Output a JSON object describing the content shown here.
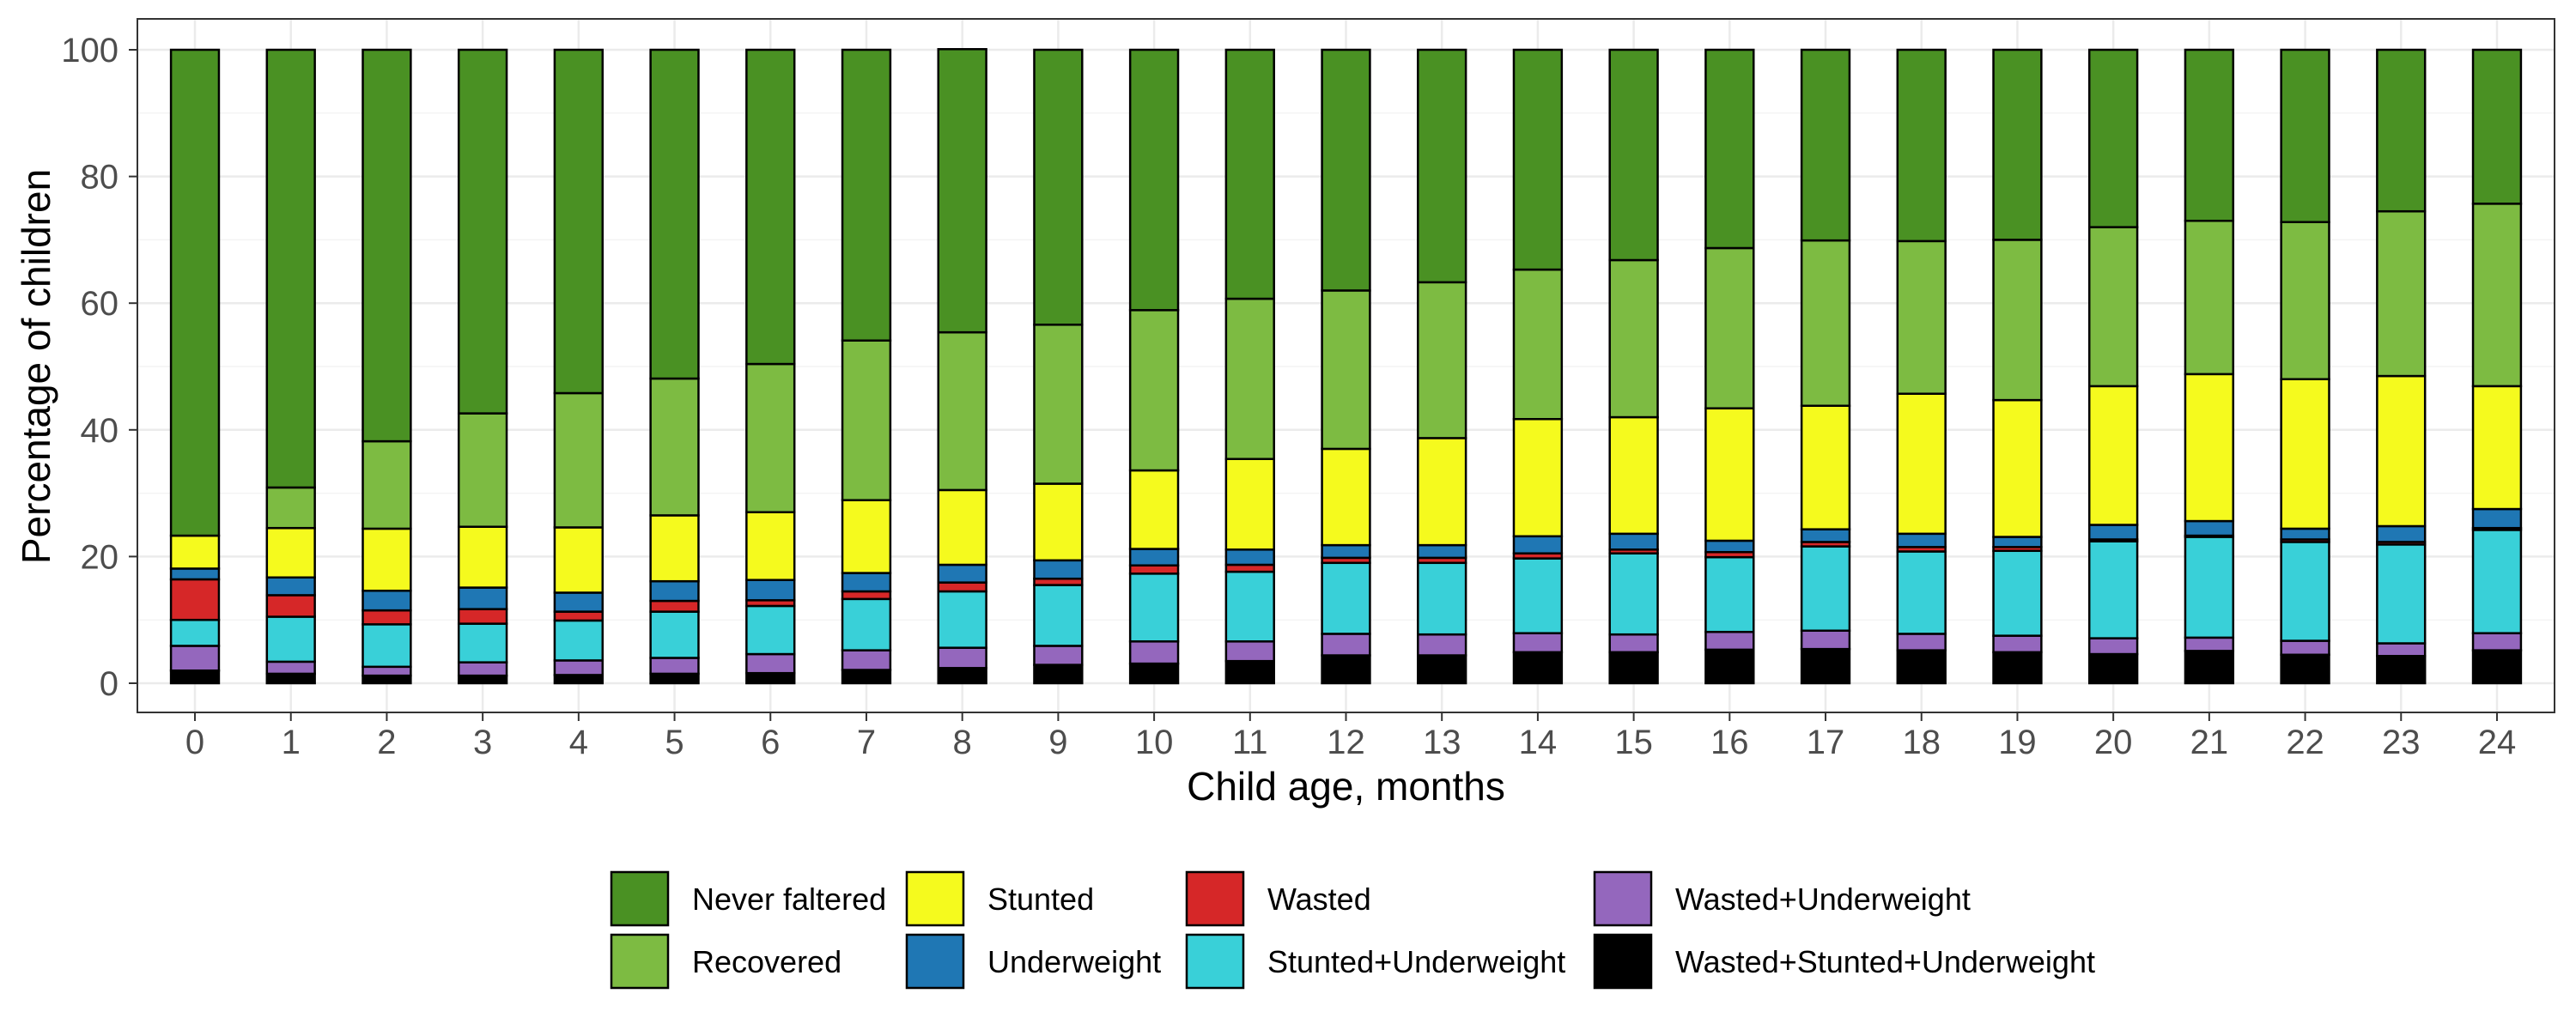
{
  "chart_data": {
    "type": "bar",
    "stacked": true,
    "xlabel": "Child age, months",
    "ylabel": "Percentage of children",
    "ylim": [
      0,
      100
    ],
    "yticks": [
      0,
      20,
      40,
      60,
      80,
      100
    ],
    "grid": true,
    "legend_position": "bottom",
    "categories": [
      "0",
      "1",
      "2",
      "3",
      "4",
      "5",
      "6",
      "7",
      "8",
      "9",
      "10",
      "11",
      "12",
      "13",
      "14",
      "15",
      "16",
      "17",
      "18",
      "19",
      "20",
      "21",
      "22",
      "23",
      "24"
    ],
    "series": [
      {
        "name": "Wasted+Stunted+Underweight",
        "color": "#000000",
        "values": [
          2.0,
          1.5,
          1.2,
          1.2,
          1.3,
          1.5,
          1.6,
          2.1,
          2.4,
          2.9,
          3.1,
          3.5,
          4.4,
          4.4,
          4.9,
          4.9,
          5.3,
          5.4,
          5.2,
          4.9,
          4.6,
          5.1,
          4.5,
          4.3,
          5.2
        ]
      },
      {
        "name": "Wasted+Underweight",
        "color": "#9467bd",
        "values": [
          3.9,
          1.9,
          1.4,
          2.1,
          2.3,
          2.5,
          3.0,
          3.1,
          3.2,
          3.0,
          3.5,
          3.1,
          3.4,
          3.3,
          3.0,
          2.8,
          2.8,
          2.9,
          2.6,
          2.6,
          2.5,
          2.1,
          2.2,
          2.0,
          2.7
        ]
      },
      {
        "name": "Stunted+Underweight",
        "color": "#39d0d8",
        "values": [
          4.1,
          7.1,
          6.7,
          6.1,
          6.3,
          7.3,
          7.6,
          8.1,
          8.9,
          9.6,
          10.7,
          11.0,
          11.2,
          11.3,
          11.8,
          12.8,
          11.8,
          13.3,
          13.0,
          13.4,
          15.3,
          15.9,
          15.6,
          15.6,
          16.3
        ]
      },
      {
        "name": "Wasted",
        "color": "#d62728",
        "values": [
          6.4,
          3.4,
          2.2,
          2.3,
          1.4,
          1.7,
          0.9,
          1.2,
          1.4,
          1.0,
          1.3,
          1.1,
          0.8,
          0.8,
          0.8,
          0.6,
          0.8,
          0.7,
          0.7,
          0.6,
          0.3,
          0.2,
          0.4,
          0.4,
          0.3
        ]
      },
      {
        "name": "Underweight",
        "color": "#1f77b4",
        "values": [
          1.7,
          2.8,
          3.1,
          3.4,
          3.0,
          3.1,
          3.2,
          2.9,
          2.8,
          2.9,
          2.6,
          2.4,
          2.0,
          2.0,
          2.7,
          2.5,
          1.8,
          2.0,
          2.1,
          1.6,
          2.3,
          2.3,
          1.7,
          2.5,
          3.0
        ]
      },
      {
        "name": "Stunted",
        "color": "#f5fa1e",
        "values": [
          5.2,
          7.8,
          9.8,
          9.6,
          10.3,
          10.4,
          10.7,
          11.5,
          11.8,
          12.1,
          12.4,
          14.3,
          15.2,
          16.9,
          18.5,
          18.4,
          20.9,
          19.5,
          22.1,
          21.6,
          21.9,
          23.2,
          23.6,
          23.7,
          19.4
        ]
      },
      {
        "name": "Recovered",
        "color": "#7dbb42",
        "values": [
          0.0,
          6.4,
          13.8,
          17.9,
          21.2,
          21.6,
          23.4,
          25.2,
          24.9,
          25.1,
          25.3,
          25.3,
          25.0,
          24.6,
          23.6,
          24.8,
          25.3,
          26.1,
          24.1,
          25.3,
          25.1,
          24.2,
          24.8,
          26.0,
          28.8
        ]
      },
      {
        "name": "Never faltered",
        "color": "#4a9123",
        "values": [
          76.7,
          69.1,
          61.8,
          57.4,
          54.2,
          51.9,
          49.6,
          45.9,
          44.7,
          43.4,
          41.1,
          39.3,
          38.0,
          36.7,
          34.7,
          33.2,
          31.3,
          30.1,
          30.2,
          30.0,
          28.0,
          27.0,
          27.2,
          25.5,
          24.3
        ]
      }
    ],
    "legend_order": [
      "Never faltered",
      "Recovered",
      "Stunted",
      "Underweight",
      "Wasted",
      "Stunted+Underweight",
      "Wasted+Underweight",
      "Wasted+Stunted+Underweight"
    ]
  }
}
